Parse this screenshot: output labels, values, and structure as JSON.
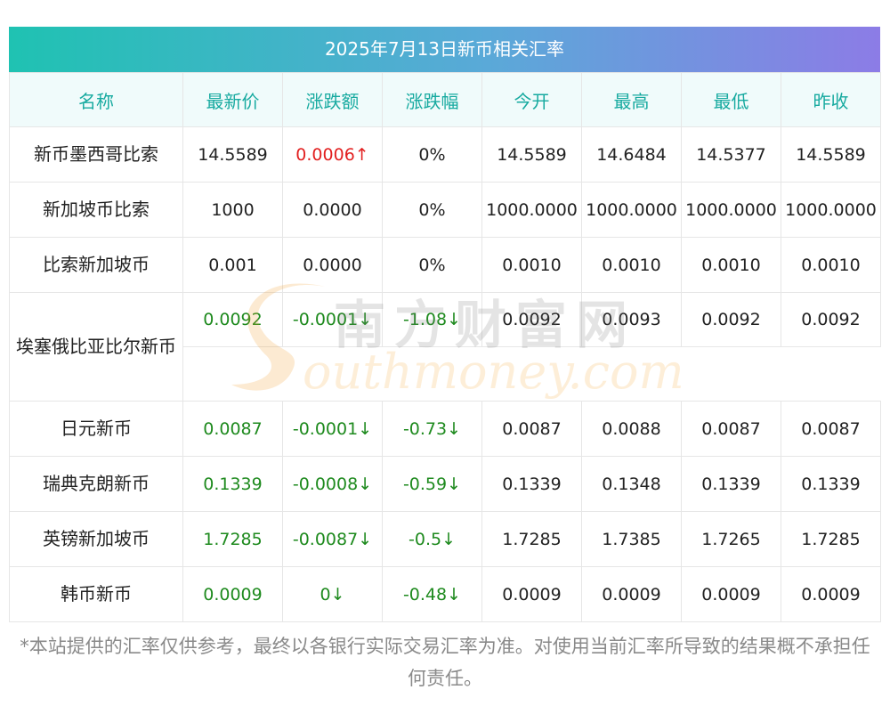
{
  "title": "2025年7月13日新币相关汇率",
  "headers": [
    "名称",
    "最新价",
    "涨跌额",
    "涨跌幅",
    "今开",
    "最高",
    "最低",
    "昨收"
  ],
  "rows": [
    {
      "name": "新币墨西哥比索",
      "latest": "14.5589",
      "change": "0.0006↑",
      "pct": "0%",
      "open": "14.5589",
      "high": "14.6484",
      "low": "14.5377",
      "prev": "14.5589",
      "trend": "up"
    },
    {
      "name": "新加坡币比索",
      "latest": "1000",
      "change": "0.0000",
      "pct": "0%",
      "open": "1000.0000",
      "high": "1000.0000",
      "low": "1000.0000",
      "prev": "1000.0000",
      "trend": "flat"
    },
    {
      "name": "比索新加坡币",
      "latest": "0.001",
      "change": "0.0000",
      "pct": "0%",
      "open": "0.0010",
      "high": "0.0010",
      "low": "0.0010",
      "prev": "0.0010",
      "trend": "flat"
    },
    {
      "name": "埃塞俄比亚比尔新币",
      "latest": "0.0092",
      "change": "-0.0001↓",
      "pct": "-1.08↓",
      "open": "0.0092",
      "high": "0.0093",
      "low": "0.0092",
      "prev": "0.0092",
      "trend": "down"
    },
    {
      "name": "日元新币",
      "latest": "0.0087",
      "change": "-0.0001↓",
      "pct": "-0.73↓",
      "open": "0.0087",
      "high": "0.0088",
      "low": "0.0087",
      "prev": "0.0087",
      "trend": "down"
    },
    {
      "name": "瑞典克朗新币",
      "latest": "0.1339",
      "change": "-0.0008↓",
      "pct": "-0.59↓",
      "open": "0.1339",
      "high": "0.1348",
      "low": "0.1339",
      "prev": "0.1339",
      "trend": "down"
    },
    {
      "name": "英镑新加坡币",
      "latest": "1.7285",
      "change": "-0.0087↓",
      "pct": "-0.5↓",
      "open": "1.7285",
      "high": "1.7385",
      "low": "1.7265",
      "prev": "1.7285",
      "trend": "down"
    },
    {
      "name": "韩币新币",
      "latest": "0.0009",
      "change": "0↓",
      "pct": "-0.48↓",
      "open": "0.0009",
      "high": "0.0009",
      "low": "0.0009",
      "prev": "0.0009",
      "trend": "down"
    }
  ],
  "watermark": {
    "cn": "南方财富网",
    "en": "outhmoney.com"
  },
  "disclaimer": "*本站提供的汇率仅供参考，最终以各银行实际交易汇率为准。对使用当前汇率所导致的结果概不承担任何责任。",
  "colors": {
    "up": "#e21f1f",
    "down": "#1e8a1e",
    "header_text": "#17aaa0",
    "title_grad_start": "#1fc2b2",
    "title_grad_end": "#8c7ce6"
  }
}
